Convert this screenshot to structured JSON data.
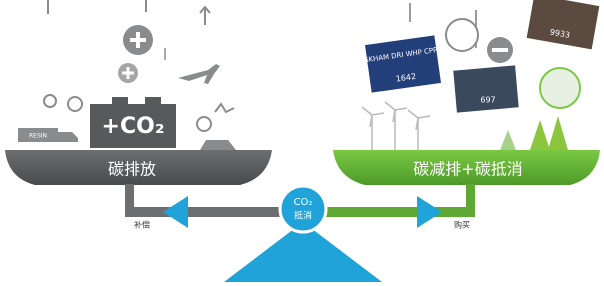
{
  "emission_block": "+CO₂",
  "left_plate": "碳排放",
  "right_plate": "碳减排+碳抵消",
  "pivot": {
    "line1": "CO₂",
    "line2": "抵消"
  },
  "left_arrow_label": "补偿",
  "right_arrow_label": "购买",
  "truck_label": "RESIN",
  "cards": [
    {
      "title": "SKHAM DRI WHP CPP",
      "number": "1642"
    },
    {
      "number": "697"
    },
    {
      "number": "9933"
    }
  ]
}
